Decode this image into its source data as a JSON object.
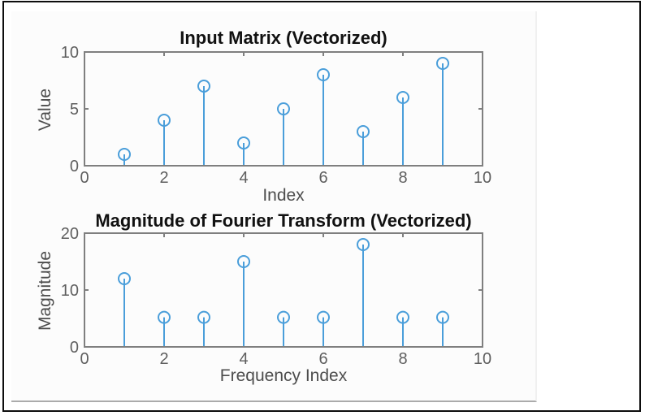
{
  "colors": {
    "stem": "#4a9eda",
    "axis_box": "#7f7f7f",
    "tick_label": "#5e5e5e",
    "title": "#111111",
    "axis_label": "#4d4d4d",
    "frame_border": "#0d0d0d",
    "figure_background": "#fcfcfc"
  },
  "chart_data": [
    {
      "type": "stem",
      "title": "Input Matrix (Vectorized)",
      "xlabel": "Index",
      "ylabel": "Value",
      "x": [
        1,
        2,
        3,
        4,
        5,
        6,
        7,
        8,
        9
      ],
      "values": [
        1,
        4,
        7,
        2,
        5,
        8,
        3,
        6,
        9
      ],
      "xlim": [
        0,
        10
      ],
      "ylim": [
        0,
        10
      ],
      "xticks": [
        0,
        2,
        4,
        6,
        8,
        10
      ],
      "yticks": [
        0,
        5,
        10
      ],
      "grid": false,
      "legend": "none",
      "marker": "hollow-circle"
    },
    {
      "type": "stem",
      "title": "Magnitude of Fourier Transform (Vectorized)",
      "xlabel": "Frequency Index",
      "ylabel": "Magnitude",
      "x": [
        1,
        2,
        3,
        4,
        5,
        6,
        7,
        8,
        9
      ],
      "values": [
        12,
        5.2,
        5.2,
        15,
        5.2,
        5.2,
        18,
        5.2,
        5.2
      ],
      "xlim": [
        0,
        10
      ],
      "ylim": [
        0,
        20
      ],
      "xticks": [
        0,
        2,
        4,
        6,
        8,
        10
      ],
      "yticks": [
        0,
        10,
        20
      ],
      "grid": false,
      "legend": "none",
      "marker": "hollow-circle"
    }
  ]
}
